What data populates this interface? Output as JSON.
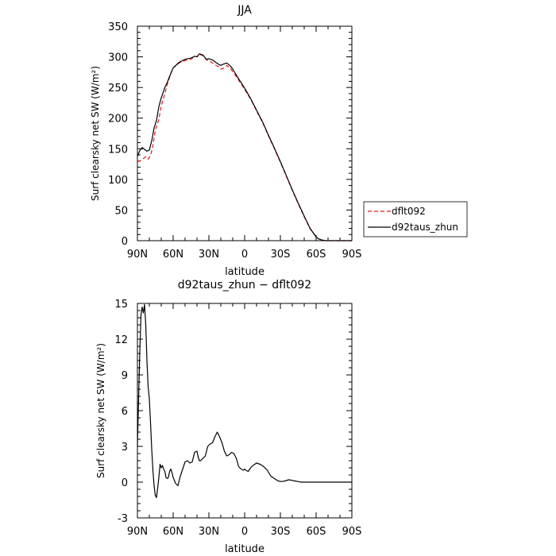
{
  "chart_data": [
    {
      "type": "line",
      "title": "JJA",
      "xlabel": "latitude",
      "ylabel": "Surf clearsky net SW (W/m²)",
      "x_ticks": [
        {
          "value": 90,
          "label": "90N"
        },
        {
          "value": 60,
          "label": "60N"
        },
        {
          "value": 30,
          "label": "30N"
        },
        {
          "value": 0,
          "label": "0"
        },
        {
          "value": -30,
          "label": "30S"
        },
        {
          "value": -60,
          "label": "60S"
        },
        {
          "value": -90,
          "label": "90S"
        }
      ],
      "xlim": [
        90,
        -90
      ],
      "ylim": [
        0,
        350
      ],
      "y_ticks": [
        0,
        50,
        100,
        150,
        200,
        250,
        300,
        350
      ],
      "legend": {
        "placement": "right"
      },
      "series": [
        {
          "name": "dflt092",
          "color": "#e41a1c",
          "dash": "dashed",
          "x": [
            90,
            87,
            85,
            83,
            81,
            79,
            77,
            75,
            72,
            70,
            67,
            65,
            62,
            60,
            55,
            50,
            45,
            42,
            40,
            38,
            35,
            32,
            30,
            27,
            25,
            22,
            20,
            18,
            15,
            12,
            10,
            5,
            0,
            -5,
            -10,
            -15,
            -20,
            -25,
            -30,
            -35,
            -40,
            -45,
            -50,
            -55,
            -60,
            -62,
            -65,
            -68,
            -70,
            -75,
            -80,
            -85,
            -90
          ],
          "y": [
            129,
            131,
            134,
            137,
            133,
            139,
            155,
            180,
            198,
            220,
            240,
            255,
            272,
            282,
            290,
            294,
            296,
            301,
            300,
            304,
            302,
            295,
            294,
            290,
            287,
            284,
            280,
            281,
            286,
            281,
            276,
            262,
            247,
            231,
            212,
            193,
            171,
            150,
            128,
            105,
            82,
            60,
            39,
            19,
            6,
            3,
            1,
            0,
            0,
            0,
            0,
            0,
            0
          ]
        },
        {
          "name": "d92taus_zhun",
          "color": "#000000",
          "dash": "solid",
          "x": [
            90,
            88,
            86,
            84,
            82,
            80,
            78,
            76,
            74,
            72,
            70,
            67,
            65,
            62,
            60,
            55,
            50,
            45,
            42,
            40,
            38,
            35,
            32,
            30,
            27,
            25,
            22,
            20,
            18,
            15,
            12,
            10,
            5,
            0,
            -5,
            -10,
            -15,
            -20,
            -25,
            -30,
            -35,
            -40,
            -45,
            -50,
            -55,
            -60,
            -62,
            -65,
            -68,
            -70,
            -75,
            -80,
            -85,
            -90
          ],
          "y": [
            138,
            147,
            152,
            149,
            146,
            148,
            163,
            184,
            196,
            219,
            233,
            250,
            258,
            273,
            282,
            291,
            296,
            298,
            301,
            300,
            305,
            303,
            296,
            297,
            295,
            292,
            288,
            286,
            288,
            290,
            285,
            280,
            264,
            249,
            232,
            213,
            194,
            172,
            151,
            129,
            106,
            83,
            61,
            40,
            20,
            6,
            3,
            1,
            0,
            0,
            0,
            0,
            0,
            0
          ]
        }
      ]
    },
    {
      "type": "line",
      "title": "d92taus_zhun − dflt092",
      "xlabel": "latitude",
      "ylabel": "Surf clearsky net SW (W/m²)",
      "x_ticks": [
        {
          "value": 90,
          "label": "90N"
        },
        {
          "value": 60,
          "label": "60N"
        },
        {
          "value": 30,
          "label": "30N"
        },
        {
          "value": 0,
          "label": "0"
        },
        {
          "value": -30,
          "label": "30S"
        },
        {
          "value": -60,
          "label": "60S"
        },
        {
          "value": -90,
          "label": "90S"
        }
      ],
      "xlim": [
        90,
        -90
      ],
      "ylim": [
        -3,
        15
      ],
      "y_ticks": [
        -3,
        0,
        3,
        6,
        9,
        12,
        15
      ],
      "series": [
        {
          "color": "#000000",
          "dash": "solid",
          "x": [
            90,
            89,
            88,
            87,
            86,
            85,
            84,
            83,
            82,
            81,
            80,
            79,
            78,
            77,
            76,
            75,
            74,
            73,
            72,
            71,
            70,
            69,
            68,
            67,
            66,
            65,
            64,
            63,
            62,
            61,
            60,
            58,
            56,
            54,
            52,
            50,
            48,
            46,
            44,
            42,
            40,
            39,
            38,
            37,
            35,
            33,
            31,
            29,
            27,
            25,
            23,
            21,
            19,
            17,
            15,
            13,
            11,
            9,
            7,
            5,
            3,
            1,
            0,
            -1,
            -3,
            -5,
            -7,
            -10,
            -13,
            -16,
            -19,
            -22,
            -25,
            -28,
            -31,
            -34,
            -37,
            -40,
            -42,
            -45,
            -48,
            -50,
            -55,
            -60,
            -65,
            -70,
            -75,
            -80,
            -85,
            -90
          ],
          "y": [
            3.0,
            7.0,
            11.0,
            14.0,
            14.7,
            14.2,
            14.9,
            13.2,
            10.2,
            8.0,
            7.0,
            5.0,
            2.8,
            1.0,
            -0.3,
            -1.1,
            -1.3,
            -0.5,
            0.4,
            1.5,
            1.2,
            1.4,
            1.1,
            0.9,
            0.4,
            0.3,
            0.4,
            0.9,
            1.1,
            0.8,
            0.4,
            -0.1,
            -0.3,
            0.5,
            1.1,
            1.7,
            1.8,
            1.6,
            1.7,
            2.5,
            2.6,
            2.1,
            1.8,
            1.8,
            2.0,
            2.2,
            3.0,
            3.2,
            3.3,
            3.8,
            4.2,
            3.8,
            3.3,
            2.6,
            2.2,
            2.3,
            2.5,
            2.4,
            2.0,
            1.3,
            1.1,
            1.0,
            1.1,
            1.0,
            0.9,
            1.2,
            1.4,
            1.6,
            1.5,
            1.3,
            1.0,
            0.5,
            0.3,
            0.1,
            0.05,
            0.1,
            0.2,
            0.15,
            0.1,
            0.05,
            0.0,
            0.0,
            0.0,
            0.0,
            0.0,
            0.0,
            0.0,
            0.0,
            0.0,
            0.0
          ]
        }
      ]
    }
  ]
}
